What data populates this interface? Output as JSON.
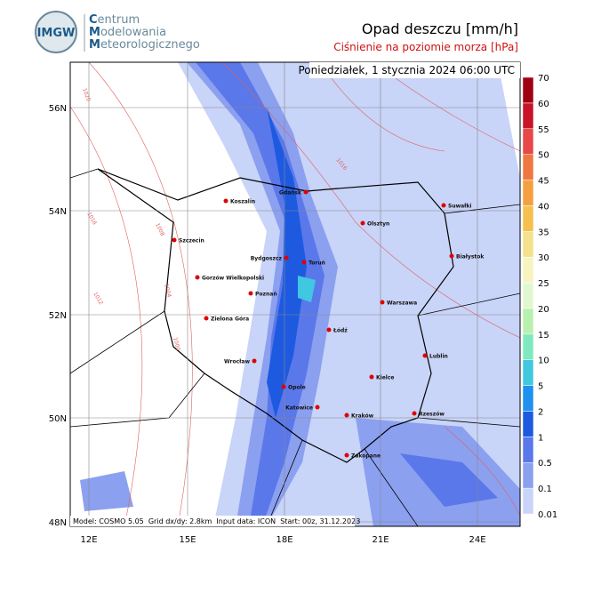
{
  "header": {
    "logo": "IMGW",
    "org": [
      "Centrum",
      "Modelowania",
      "Meteorologicznego"
    ]
  },
  "title": "Opad deszczu [mm/h]",
  "subtitle": "Ciśnienie na poziomie morza [hPa]",
  "timestamp": "Poniedziałek, 1 stycznia 2024 06:00 UTC",
  "footer": "Model: COSMO 5.05  Grid dx/dy: 2.8km  Input data: ICON  Start: 00z, 31.12.2023",
  "colorbar": {
    "levels": [
      0.01,
      0.1,
      0.5,
      1,
      2,
      5,
      10,
      15,
      20,
      25,
      30,
      35,
      40,
      45,
      50,
      55,
      60,
      70
    ],
    "colors": [
      "#c8d4f8",
      "#8ca0f0",
      "#5a78ea",
      "#1e5ae0",
      "#1e90f0",
      "#40c8e0",
      "#80e8c0",
      "#b8f0b0",
      "#e0f8d0",
      "#f8f4c0",
      "#f5e08c",
      "#f5c050",
      "#f5a040",
      "#f07840",
      "#e84848",
      "#c81428",
      "#a00010"
    ]
  },
  "lat_labels": [
    "56N",
    "54N",
    "52N",
    "50N",
    "48N"
  ],
  "lon_labels": [
    "12E",
    "15E",
    "18E",
    "21E",
    "24E"
  ],
  "cities": [
    "Gdańsk",
    "Koszalin",
    "Szczecin",
    "Olsztyn",
    "Suwałki",
    "Bydgoszcz",
    "Toruń",
    "Białystok",
    "Gorzów Wielkopolski",
    "Poznań",
    "Warszawa",
    "Zielona Góra",
    "Łódź",
    "Lublin",
    "Wrocław",
    "Opole",
    "Kielce",
    "Katowice",
    "Kraków",
    "Rzeszów",
    "Zakopane"
  ],
  "isobars": [
    "1020",
    "1016",
    "1012",
    "1008",
    "1004",
    "1000",
    "1016"
  ]
}
